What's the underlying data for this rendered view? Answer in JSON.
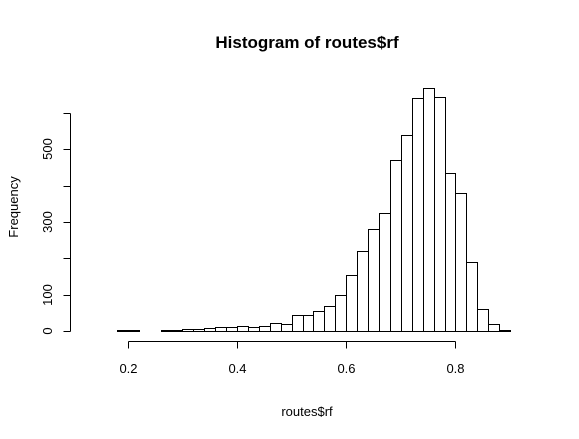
{
  "chart_data": {
    "type": "bar",
    "title": "Histogram of routes$rf",
    "xlabel": "routes$rf",
    "ylabel": "Frequency",
    "bin_width": 0.02,
    "bin_start": 0.14,
    "xlim": [
      0.14,
      0.92
    ],
    "ylim": [
      0,
      600
    ],
    "x_ticks": [
      0.2,
      0.4,
      0.6,
      0.8
    ],
    "x_tick_labels": [
      "0.2",
      "0.4",
      "0.6",
      "0.8"
    ],
    "y_ticks": [
      0,
      100,
      300,
      500
    ],
    "y_tick_labels": [
      "0",
      "100",
      "300",
      "500"
    ],
    "values": [
      1,
      0,
      2,
      2,
      0,
      1,
      2,
      3,
      5,
      5,
      7,
      12,
      10,
      13,
      11,
      15,
      22,
      19,
      45,
      43,
      55,
      69,
      100,
      155,
      220,
      280,
      325,
      470,
      540,
      640,
      670,
      645,
      435,
      380,
      190,
      60,
      18,
      3
    ],
    "grid": false,
    "bar_fill": "#ffffff",
    "bar_stroke": "#000000"
  }
}
